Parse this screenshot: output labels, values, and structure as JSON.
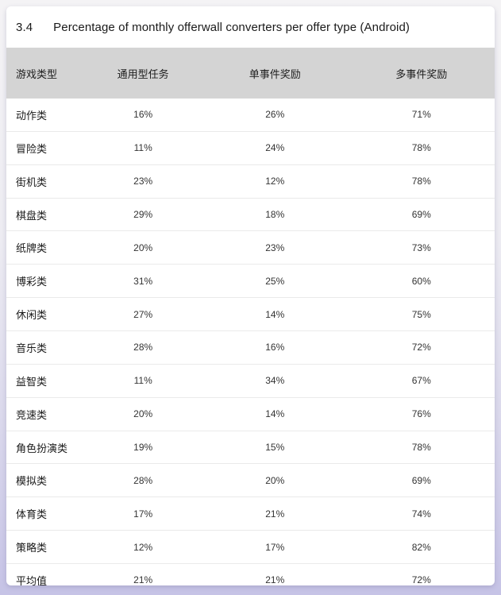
{
  "page": {
    "background_top_color": "#f4f3f5",
    "background_bottom_color": "#c6c3e6",
    "card_color": "#ffffff"
  },
  "title": {
    "section": "3.4",
    "text": "Percentage of monthly offerwall converters per offer type (Android)"
  },
  "table": {
    "header_bg_color": "#d4d4d4",
    "columns": [
      "游戏类型",
      "通用型任务",
      "单事件奖励",
      "多事件奖励"
    ],
    "rows": [
      [
        "动作类",
        "16%",
        "26%",
        "71%"
      ],
      [
        "冒险类",
        "11%",
        "24%",
        "78%"
      ],
      [
        "街机类",
        "23%",
        "12%",
        "78%"
      ],
      [
        "棋盘类",
        "29%",
        "18%",
        "69%"
      ],
      [
        "纸牌类",
        "20%",
        "23%",
        "73%"
      ],
      [
        "博彩类",
        "31%",
        "25%",
        "60%"
      ],
      [
        "休闲类",
        "27%",
        "14%",
        "75%"
      ],
      [
        "音乐类",
        "28%",
        "16%",
        "72%"
      ],
      [
        "益智类",
        "11%",
        "34%",
        "67%"
      ],
      [
        "竞速类",
        "20%",
        "14%",
        "76%"
      ],
      [
        "角色扮演类",
        "19%",
        "15%",
        "78%"
      ],
      [
        "模拟类",
        "28%",
        "20%",
        "69%"
      ],
      [
        "体育类",
        "17%",
        "21%",
        "74%"
      ],
      [
        "策略类",
        "12%",
        "17%",
        "82%"
      ],
      [
        "平均值",
        "21%",
        "21%",
        "72%"
      ]
    ]
  }
}
